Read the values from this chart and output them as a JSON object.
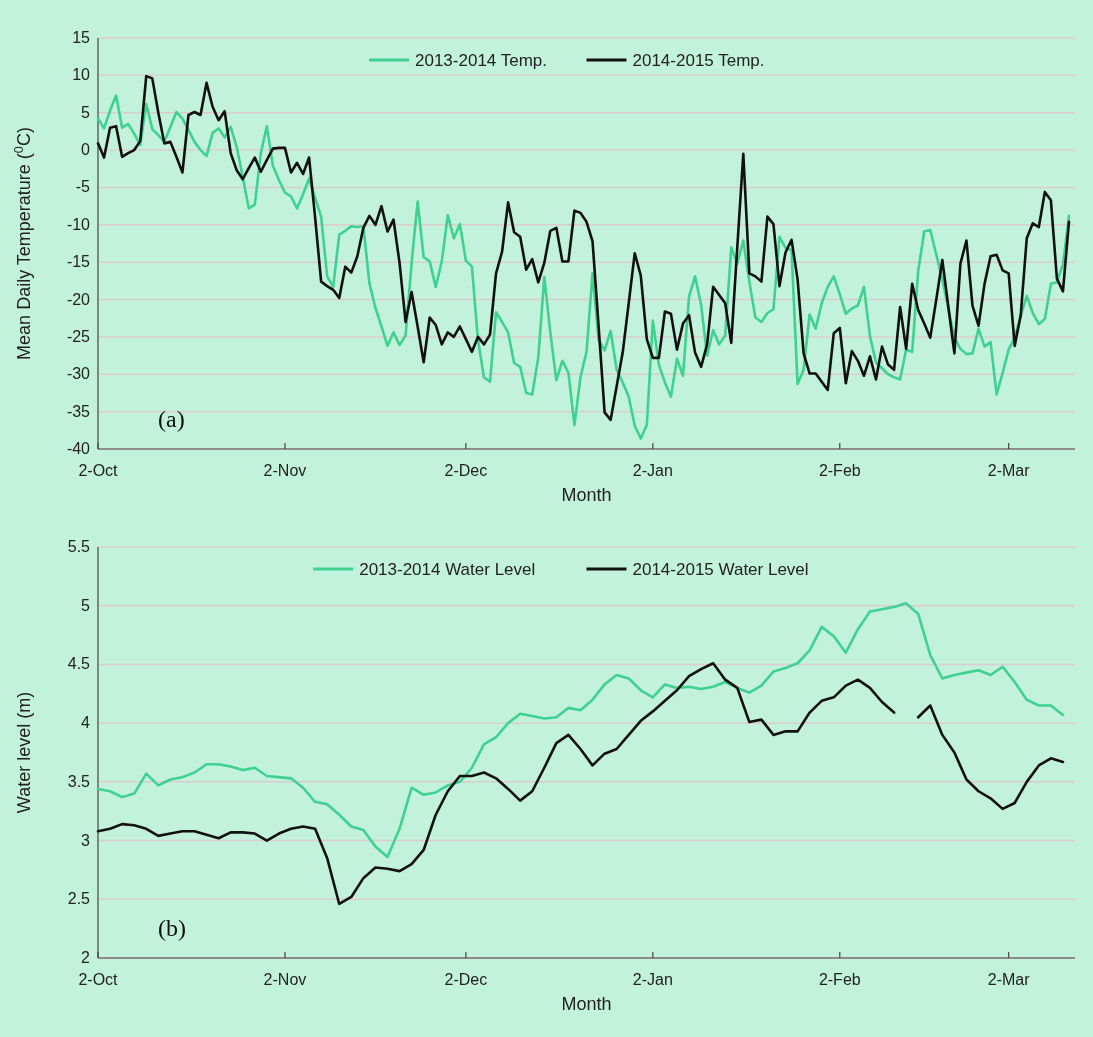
{
  "chart_data": [
    {
      "type": "line",
      "xlabel": "Month",
      "ylabel": "Mean Daily Temperature ($^{0}$C)",
      "annotations": [
        "(a)"
      ],
      "legend": "top",
      "grid": "y",
      "xlim": [
        "2013-10-02",
        "2014-03-13"
      ],
      "ylim": [
        -40,
        15
      ],
      "yticks": [
        -40,
        -35,
        -30,
        -25,
        -20,
        -15,
        -10,
        -5,
        0,
        5,
        10,
        15
      ],
      "xticks": [
        {
          "value": "2013-10-02",
          "label": "2-Oct"
        },
        {
          "value": "2013-11-02",
          "label": "2-Nov"
        },
        {
          "value": "2013-12-02",
          "label": "2-Dec"
        },
        {
          "value": "2014-01-02",
          "label": "2-Jan"
        },
        {
          "value": "2014-02-02",
          "label": "2-Feb"
        },
        {
          "value": "2014-03-02",
          "label": "2-Mar"
        }
      ],
      "x": [
        "2013-10-02",
        "2013-10-03",
        "2013-10-04",
        "2013-10-05",
        "2013-10-06",
        "2013-10-07",
        "2013-10-08",
        "2013-10-09",
        "2013-10-10",
        "2013-10-11",
        "2013-10-12",
        "2013-10-13",
        "2013-10-14",
        "2013-10-15",
        "2013-10-16",
        "2013-10-17",
        "2013-10-18",
        "2013-10-19",
        "2013-10-20",
        "2013-10-21",
        "2013-10-22",
        "2013-10-23",
        "2013-10-24",
        "2013-10-25",
        "2013-10-26",
        "2013-10-27",
        "2013-10-28",
        "2013-10-29",
        "2013-10-30",
        "2013-10-31",
        "2013-11-01",
        "2013-11-02",
        "2013-11-03",
        "2013-11-04",
        "2013-11-05",
        "2013-11-06",
        "2013-11-07",
        "2013-11-08",
        "2013-11-09",
        "2013-11-10",
        "2013-11-11",
        "2013-11-12",
        "2013-11-13",
        "2013-11-14",
        "2013-11-15",
        "2013-11-16",
        "2013-11-17",
        "2013-11-18",
        "2013-11-19",
        "2013-11-20",
        "2013-11-21",
        "2013-11-22",
        "2013-11-23",
        "2013-11-24",
        "2013-11-25",
        "2013-11-26",
        "2013-11-27",
        "2013-11-28",
        "2013-11-29",
        "2013-11-30",
        "2013-12-01",
        "2013-12-02",
        "2013-12-03",
        "2013-12-04",
        "2013-12-05",
        "2013-12-06",
        "2013-12-07",
        "2013-12-08",
        "2013-12-09",
        "2013-12-10",
        "2013-12-11",
        "2013-12-12",
        "2013-12-13",
        "2013-12-14",
        "2013-12-15",
        "2013-12-16",
        "2013-12-17",
        "2013-12-18",
        "2013-12-19",
        "2013-12-20",
        "2013-12-21",
        "2013-12-22",
        "2013-12-23",
        "2013-12-24",
        "2013-12-25",
        "2013-12-26",
        "2013-12-27",
        "2013-12-28",
        "2013-12-29",
        "2013-12-30",
        "2013-12-31",
        "2014-01-01",
        "2014-01-02",
        "2014-01-03",
        "2014-01-04",
        "2014-01-05",
        "2014-01-06",
        "2014-01-07",
        "2014-01-08",
        "2014-01-09",
        "2014-01-10",
        "2014-01-11",
        "2014-01-12",
        "2014-01-13",
        "2014-01-14",
        "2014-01-15",
        "2014-01-16",
        "2014-01-17",
        "2014-01-18",
        "2014-01-19",
        "2014-01-20",
        "2014-01-21",
        "2014-01-22",
        "2014-01-23",
        "2014-01-24",
        "2014-01-25",
        "2014-01-26",
        "2014-01-27",
        "2014-01-28",
        "2014-01-29",
        "2014-01-30",
        "2014-01-31",
        "2014-02-01",
        "2014-02-02",
        "2014-02-03",
        "2014-02-04",
        "2014-02-05",
        "2014-02-06",
        "2014-02-07",
        "2014-02-08",
        "2014-02-09",
        "2014-02-10",
        "2014-02-11",
        "2014-02-12",
        "2014-02-13",
        "2014-02-14",
        "2014-02-15",
        "2014-02-16",
        "2014-02-17",
        "2014-02-18",
        "2014-02-19",
        "2014-02-20",
        "2014-02-21",
        "2014-02-22",
        "2014-02-23",
        "2014-02-24",
        "2014-02-25",
        "2014-02-26",
        "2014-02-27",
        "2014-02-28",
        "2014-03-01",
        "2014-03-02",
        "2014-03-03",
        "2014-03-04",
        "2014-03-05",
        "2014-03-06",
        "2014-03-07",
        "2014-03-08",
        "2014-03-09",
        "2014-03-10",
        "2014-03-11",
        "2014-03-12"
      ],
      "series": [
        {
          "name": "2013-2014 Temp.",
          "color": "#3fd18f",
          "values": [
            4.2,
            2.9,
            5.3,
            7.3,
            3,
            3.5,
            2.2,
            0.7,
            6.2,
            2.8,
            2,
            1.1,
            3.1,
            5.1,
            4.2,
            2.7,
            1.1,
            0,
            -0.8,
            2.3,
            2.9,
            1.7,
            3.1,
            0.4,
            -3.6,
            -7.8,
            -7.3,
            -0.4,
            3.2,
            -2.1,
            -4,
            -5.7,
            -6.2,
            -7.8,
            -5.9,
            -3.8,
            -6.4,
            -8.9,
            -16.9,
            -18.3,
            -11.3,
            -10.8,
            -10.2,
            -10.3,
            -10.2,
            -17.8,
            -21.1,
            -23.6,
            -26.2,
            -24.4,
            -26.1,
            -24.8,
            -15.1,
            -6.9,
            -14.3,
            -14.9,
            -18.3,
            -14.9,
            -8.7,
            -11.8,
            -9.9,
            -14.8,
            -15.6,
            -25.4,
            -30.4,
            -31,
            -21.7,
            -23,
            -24.4,
            -28.5,
            -29,
            -32.5,
            -32.7,
            -27.8,
            -17,
            -24.4,
            -30.8,
            -28.2,
            -29.8,
            -36.8,
            -30.4,
            -27,
            -16.5,
            -25.4,
            -26.8,
            -24.2,
            -29.4,
            -31.1,
            -33,
            -36.9,
            -38.6,
            -36.8,
            -22.8,
            -28.7,
            -31.1,
            -33,
            -27.9,
            -30.2,
            -19.6,
            -16.9,
            -20.7,
            -27.5,
            -24.1,
            -26,
            -24.8,
            -13,
            -15.2,
            -12.1,
            -17.6,
            -22.4,
            -23,
            -21.8,
            -21.3,
            -11.6,
            -13.1,
            -13.4,
            -31.3,
            -29.4,
            -22,
            -23.9,
            -20.5,
            -18.3,
            -16.9,
            -19.3,
            -21.9,
            -21.2,
            -20.8,
            -18.3,
            -24.9,
            -28.4,
            -29.2,
            -30,
            -30.4,
            -30.7,
            -26.7,
            -27,
            -16.2,
            -10.9,
            -10.7,
            -14,
            -17.3,
            -21.2,
            -25.1,
            -26.6,
            -27.3,
            -27.2,
            -23.9,
            -26.3,
            -25.7,
            -32.7,
            -29.8,
            -26.7,
            -25.1,
            -22.2,
            -19.5,
            -21.8,
            -23.3,
            -22.6,
            -17.9,
            -17.7,
            -15.3,
            -8.8
          ]
        },
        {
          "name": "2014-2015 Temp.",
          "color": "#111111",
          "values": [
            0.9,
            -1,
            3,
            3.2,
            -0.9,
            -0.4,
            0,
            1.2,
            9.9,
            9.6,
            5,
            0.9,
            1.1,
            -0.9,
            -3,
            4.7,
            5.1,
            4.7,
            9,
            5.8,
            4,
            5.2,
            -0.4,
            -2.7,
            -3.9,
            -2.4,
            -1,
            -2.9,
            -1.3,
            0.2,
            0.3,
            0.3,
            -3,
            -1.7,
            -3.2,
            -1,
            -9,
            -17.6,
            -18.2,
            -18.7,
            -19.8,
            -15.6,
            -16.4,
            -14.2,
            -10.4,
            -8.8,
            -10,
            -7.5,
            -10.9,
            -9.3,
            -15.1,
            -23,
            -19,
            -23.6,
            -28.4,
            -22.4,
            -23.4,
            -26,
            -24.4,
            -25,
            -23.6,
            -25.3,
            -27,
            -25,
            -26,
            -24.7,
            -16.5,
            -13.6,
            -7,
            -11,
            -11.6,
            -16,
            -14.6,
            -17.7,
            -15.1,
            -10.8,
            -10.4,
            -14.9,
            -14.9,
            -8.1,
            -8.4,
            -9.6,
            -12.2,
            -23.5,
            -35.1,
            -36.1,
            -31.6,
            -27.1,
            -20.5,
            -13.8,
            -16.8,
            -25.3,
            -27.8,
            -27.8,
            -21.6,
            -21.9,
            -26.7,
            -23.2,
            -22.1,
            -27.1,
            -29,
            -26,
            -18.3,
            -19.4,
            -20.5,
            -25.8,
            -13,
            -0.5,
            -16.5,
            -16.9,
            -17.6,
            -8.9,
            -9.9,
            -18.2,
            -13.7,
            -12,
            -17.3,
            -27.2,
            -29.9,
            -29.9,
            -31,
            -32.1,
            -24.5,
            -23.8,
            -31.2,
            -26.9,
            -28.2,
            -30.2,
            -27.6,
            -30.7,
            -26.3,
            -28.7,
            -29.4,
            -21,
            -26.6,
            -17.9,
            -21.4,
            -23.2,
            -25.1,
            -20,
            -14.7,
            -21,
            -27.2,
            -15.2,
            -12.1,
            -20.8,
            -23.5,
            -17.9,
            -14.2,
            -14,
            -16.1,
            -16.5,
            -26.2,
            -22.1,
            -11.8,
            -9.8,
            -10.3,
            -5.6,
            -6.7,
            -17.2,
            -18.9,
            -9.6
          ]
        }
      ]
    },
    {
      "type": "line",
      "xlabel": "Month",
      "ylabel": "Water level (m)",
      "annotations": [
        "(b)"
      ],
      "legend": "top",
      "grid": "y",
      "xlim": [
        "2013-10-02",
        "2014-03-13"
      ],
      "ylim": [
        2,
        5.5
      ],
      "yticks": [
        2,
        2.5,
        3,
        3.5,
        4,
        4.5,
        5,
        5.5
      ],
      "xticks": [
        {
          "value": "2013-10-02",
          "label": "2-Oct"
        },
        {
          "value": "2013-11-02",
          "label": "2-Nov"
        },
        {
          "value": "2013-12-02",
          "label": "2-Dec"
        },
        {
          "value": "2014-01-02",
          "label": "2-Jan"
        },
        {
          "value": "2014-02-02",
          "label": "2-Feb"
        },
        {
          "value": "2014-03-02",
          "label": "2-Mar"
        }
      ],
      "x": [
        "2013-10-02",
        "2013-10-04",
        "2013-10-06",
        "2013-10-08",
        "2013-10-10",
        "2013-10-12",
        "2013-10-14",
        "2013-10-16",
        "2013-10-18",
        "2013-10-20",
        "2013-10-22",
        "2013-10-24",
        "2013-10-26",
        "2013-10-28",
        "2013-10-30",
        "2013-11-01",
        "2013-11-03",
        "2013-11-05",
        "2013-11-07",
        "2013-11-09",
        "2013-11-11",
        "2013-11-13",
        "2013-11-15",
        "2013-11-17",
        "2013-11-19",
        "2013-11-21",
        "2013-11-23",
        "2013-11-25",
        "2013-11-27",
        "2013-11-29",
        "2013-12-01",
        "2013-12-03",
        "2013-12-05",
        "2013-12-07",
        "2013-12-09",
        "2013-12-11",
        "2013-12-13",
        "2013-12-15",
        "2013-12-17",
        "2013-12-19",
        "2013-12-21",
        "2013-12-23",
        "2013-12-25",
        "2013-12-27",
        "2013-12-29",
        "2013-12-31",
        "2014-01-02",
        "2014-01-04",
        "2014-01-06",
        "2014-01-08",
        "2014-01-10",
        "2014-01-12",
        "2014-01-14",
        "2014-01-16",
        "2014-01-18",
        "2014-01-20",
        "2014-01-22",
        "2014-01-24",
        "2014-01-26",
        "2014-01-28",
        "2014-01-30",
        "2014-02-01",
        "2014-02-03",
        "2014-02-05",
        "2014-02-07",
        "2014-02-09",
        "2014-02-11",
        "2014-02-13",
        "2014-02-15",
        "2014-02-17",
        "2014-02-19",
        "2014-02-21",
        "2014-02-23",
        "2014-02-25",
        "2014-02-27",
        "2014-03-01",
        "2014-03-03",
        "2014-03-05",
        "2014-03-07",
        "2014-03-09",
        "2014-03-11"
      ],
      "series": [
        {
          "name": "2013-2014 Water Level",
          "color": "#3fd18f",
          "values": [
            3.44,
            3.42,
            3.37,
            3.4,
            3.57,
            3.47,
            3.52,
            3.54,
            3.58,
            3.65,
            3.65,
            3.63,
            3.6,
            3.62,
            3.55,
            3.54,
            3.53,
            3.45,
            3.33,
            3.31,
            3.22,
            3.12,
            3.09,
            2.95,
            2.86,
            3.1,
            3.45,
            3.39,
            3.41,
            3.47,
            3.5,
            3.62,
            3.82,
            3.88,
            4,
            4.08,
            4.06,
            4.04,
            4.05,
            4.13,
            4.11,
            4.2,
            4.33,
            4.41,
            4.38,
            4.28,
            4.22,
            4.33,
            4.3,
            4.31,
            4.29,
            4.31,
            4.35,
            4.3,
            4.26,
            4.32,
            4.44,
            4.47,
            4.51,
            4.62,
            4.82,
            4.74,
            4.6,
            4.8,
            4.95,
            4.97,
            4.99,
            5.02,
            4.93,
            4.58,
            4.38,
            4.41,
            4.43,
            4.45,
            4.41,
            4.48,
            4.35,
            4.2,
            4.15,
            4.15,
            4.07
          ]
        },
        {
          "name": "2014-2015 Water Level",
          "color": "#111111",
          "values": [
            3.08,
            3.1,
            3.14,
            3.13,
            3.1,
            3.04,
            3.06,
            3.08,
            3.08,
            3.05,
            3.02,
            3.07,
            3.07,
            3.06,
            3,
            3.06,
            3.1,
            3.12,
            3.1,
            2.85,
            2.46,
            2.52,
            2.68,
            2.77,
            2.76,
            2.74,
            2.8,
            2.92,
            3.22,
            3.42,
            3.55,
            3.55,
            3.58,
            3.53,
            3.44,
            3.34,
            3.42,
            3.62,
            3.83,
            3.9,
            3.78,
            3.64,
            3.74,
            3.78,
            3.9,
            4.02,
            4.1,
            4.19,
            4.28,
            4.4,
            4.46,
            4.51,
            4.37,
            4.3,
            4.01,
            4.03,
            3.9,
            3.93,
            3.93,
            4.09,
            4.19,
            4.22,
            4.32,
            4.37,
            4.3,
            4.18,
            4.09,
            null,
            4.05,
            4.15,
            3.9,
            3.75,
            3.52,
            3.42,
            3.36,
            3.27,
            3.32,
            3.5,
            3.64,
            3.7,
            3.67
          ]
        }
      ]
    }
  ]
}
